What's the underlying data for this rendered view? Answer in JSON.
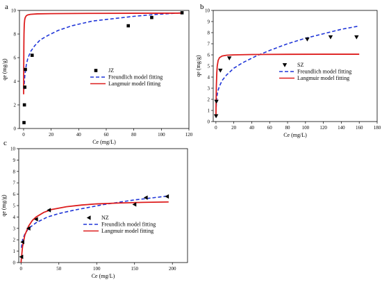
{
  "chart_data": [
    {
      "panel": "a",
      "type": "scatter",
      "xlabel": "Ce (mg/L)",
      "ylabel": "qe (mg/g)",
      "xlim": [
        -3,
        120
      ],
      "ylim": [
        0,
        10
      ],
      "xticks": [
        0,
        20,
        40,
        60,
        80,
        100,
        120
      ],
      "yticks": [
        0,
        2,
        4,
        6,
        8,
        10
      ],
      "legend_position": "center-left",
      "series": [
        {
          "name": "JZ",
          "kind": "points",
          "marker": "square",
          "color": "#000000",
          "x": [
            0.3,
            0.6,
            0.9,
            1.3,
            6.2,
            76,
            93,
            115
          ],
          "y": [
            0.5,
            2.0,
            3.5,
            5.0,
            6.2,
            8.7,
            9.4,
            9.8
          ]
        },
        {
          "name": "Freundlich model fitting",
          "kind": "line",
          "dash": true,
          "color": "#1f35d8",
          "x": [
            0.3,
            0.6,
            1,
            2,
            3,
            5,
            8,
            12,
            18,
            25,
            35,
            50,
            65,
            80,
            95,
            115
          ],
          "y": [
            3.3,
            4.0,
            4.6,
            5.4,
            5.9,
            6.5,
            7.0,
            7.5,
            7.9,
            8.3,
            8.7,
            9.1,
            9.3,
            9.5,
            9.65,
            9.8
          ]
        },
        {
          "name": "Langmuir model fitting",
          "kind": "line",
          "dash": false,
          "color": "#dd1c1c",
          "x": [
            0.05,
            0.1,
            0.2,
            0.3,
            0.5,
            0.8,
            1.2,
            2,
            3,
            5,
            10,
            20,
            50,
            80,
            115
          ],
          "y": [
            2.9,
            4.8,
            7.0,
            8.0,
            8.8,
            9.2,
            9.4,
            9.55,
            9.62,
            9.67,
            9.71,
            9.73,
            9.75,
            9.76,
            9.77
          ]
        }
      ]
    },
    {
      "panel": "b",
      "type": "scatter",
      "xlabel": "Ce (mg/L)",
      "ylabel": "qe (mg/g)",
      "xlim": [
        -3,
        180
      ],
      "ylim": [
        0,
        10
      ],
      "xticks": [
        0,
        20,
        40,
        60,
        80,
        100,
        120,
        140,
        160,
        180
      ],
      "yticks": [
        0,
        1,
        2,
        3,
        4,
        5,
        6,
        7,
        8,
        9,
        10
      ],
      "legend_position": "center-right",
      "series": [
        {
          "name": "SZ",
          "kind": "points",
          "marker": "triangle-down",
          "color": "#000000",
          "x": [
            0.2,
            0.6,
            5,
            15,
            102,
            128,
            157
          ],
          "y": [
            0.5,
            1.8,
            4.6,
            5.7,
            7.4,
            7.6,
            7.6
          ]
        },
        {
          "name": "Freundlich model fitting",
          "kind": "line",
          "dash": true,
          "color": "#1f35d8",
          "x": [
            0.3,
            1,
            2,
            4,
            7,
            12,
            20,
            30,
            45,
            60,
            80,
            100,
            120,
            140,
            160
          ],
          "y": [
            1.3,
            2.2,
            2.7,
            3.2,
            3.7,
            4.2,
            4.8,
            5.3,
            5.9,
            6.4,
            7.0,
            7.5,
            7.9,
            8.3,
            8.6
          ]
        },
        {
          "name": "Langmuir model fitting",
          "kind": "line",
          "dash": false,
          "color": "#dd1c1c",
          "x": [
            0.05,
            0.2,
            0.5,
            1,
            1.5,
            2.5,
            4,
            7,
            12,
            20,
            40,
            80,
            120,
            160
          ],
          "y": [
            0.4,
            1.6,
            3.2,
            4.4,
            5.0,
            5.5,
            5.75,
            5.9,
            5.97,
            6.0,
            6.03,
            6.05,
            6.06,
            6.06
          ]
        }
      ]
    },
    {
      "panel": "c",
      "type": "scatter",
      "xlabel": "Ce (mg/L)",
      "ylabel": "qe (mg/g)",
      "xlim": [
        -3,
        220
      ],
      "ylim": [
        0,
        10
      ],
      "xticks": [
        0,
        50,
        100,
        150,
        200
      ],
      "yticks": [
        0,
        1,
        2,
        3,
        4,
        5,
        6,
        7,
        8,
        9,
        10
      ],
      "legend_position": "center",
      "series": [
        {
          "name": "NZ",
          "kind": "points",
          "marker": "triangle-left",
          "color": "#000000",
          "x": [
            0.5,
            2,
            10,
            20,
            37,
            150,
            165,
            193
          ],
          "y": [
            0.5,
            1.8,
            3.0,
            3.8,
            4.6,
            5.1,
            5.7,
            5.8
          ]
        },
        {
          "name": "Freundlich model fitting",
          "kind": "line",
          "dash": true,
          "color": "#1f35d8",
          "x": [
            0.5,
            2,
            5,
            10,
            20,
            35,
            50,
            70,
            90,
            110,
            130,
            150,
            170,
            195
          ],
          "y": [
            1.3,
            2.0,
            2.5,
            3.0,
            3.5,
            4.0,
            4.3,
            4.6,
            4.85,
            5.1,
            5.3,
            5.5,
            5.65,
            5.85
          ]
        },
        {
          "name": "Langmuir model fitting",
          "kind": "line",
          "dash": false,
          "color": "#dd1c1c",
          "x": [
            0,
            2,
            5,
            10,
            15,
            20,
            30,
            40,
            60,
            80,
            100,
            130,
            160,
            195
          ],
          "y": [
            0,
            1.4,
            2.4,
            3.2,
            3.7,
            4.0,
            4.4,
            4.65,
            4.9,
            5.05,
            5.15,
            5.23,
            5.28,
            5.32
          ]
        }
      ]
    }
  ]
}
